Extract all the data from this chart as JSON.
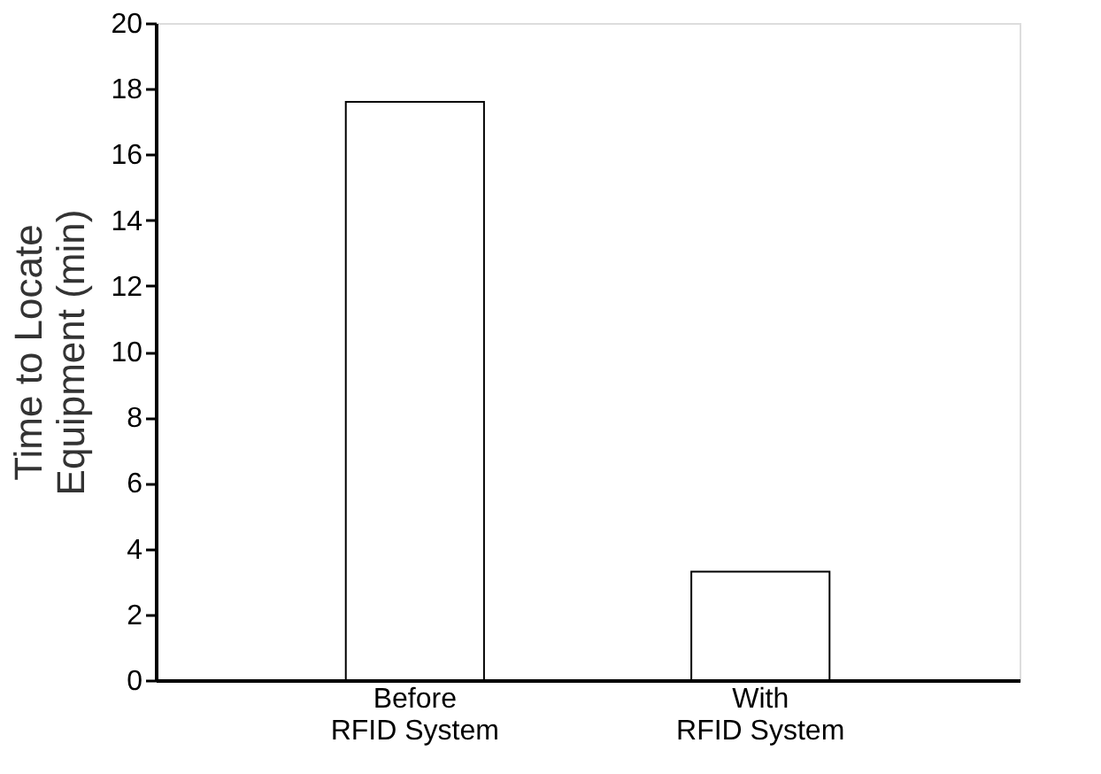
{
  "chart_data": {
    "type": "bar",
    "ylabel": "Time to Locate Equipment (min)",
    "categories": [
      "Before RFID System",
      "With RFID System"
    ],
    "values": [
      17.6,
      3.3
    ],
    "color": "#ffffff",
    "ylim": [
      0,
      20
    ],
    "yticks": [
      0,
      2,
      4,
      6,
      8,
      10,
      12,
      14,
      16,
      18,
      20
    ],
    "grid": false
  }
}
